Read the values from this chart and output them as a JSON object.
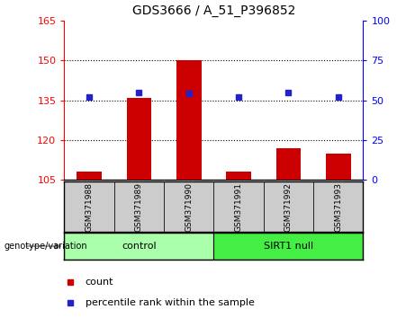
{
  "title": "GDS3666 / A_51_P396852",
  "samples": [
    "GSM371988",
    "GSM371989",
    "GSM371990",
    "GSM371991",
    "GSM371992",
    "GSM371993"
  ],
  "counts": [
    108,
    136,
    150,
    108,
    117,
    115
  ],
  "percentile_ranks": [
    52,
    55,
    54,
    52,
    55,
    52
  ],
  "ylim_left": [
    105,
    165
  ],
  "ylim_right": [
    0,
    100
  ],
  "yticks_left": [
    105,
    120,
    135,
    150,
    165
  ],
  "yticks_right": [
    0,
    25,
    50,
    75,
    100
  ],
  "bar_color": "#cc0000",
  "dot_color": "#2222cc",
  "control_color": "#aaffaa",
  "sirt1_color": "#44ee44",
  "label_bg_color": "#cccccc",
  "legend_count_label": "count",
  "legend_pct_label": "percentile rank within the sample",
  "genotype_label": "genotype/variation",
  "bar_width": 0.5,
  "base_value": 105,
  "group_spans": [
    {
      "label": "control",
      "start": 0,
      "end": 3
    },
    {
      "label": "SIRT1 null",
      "start": 3,
      "end": 6
    }
  ]
}
